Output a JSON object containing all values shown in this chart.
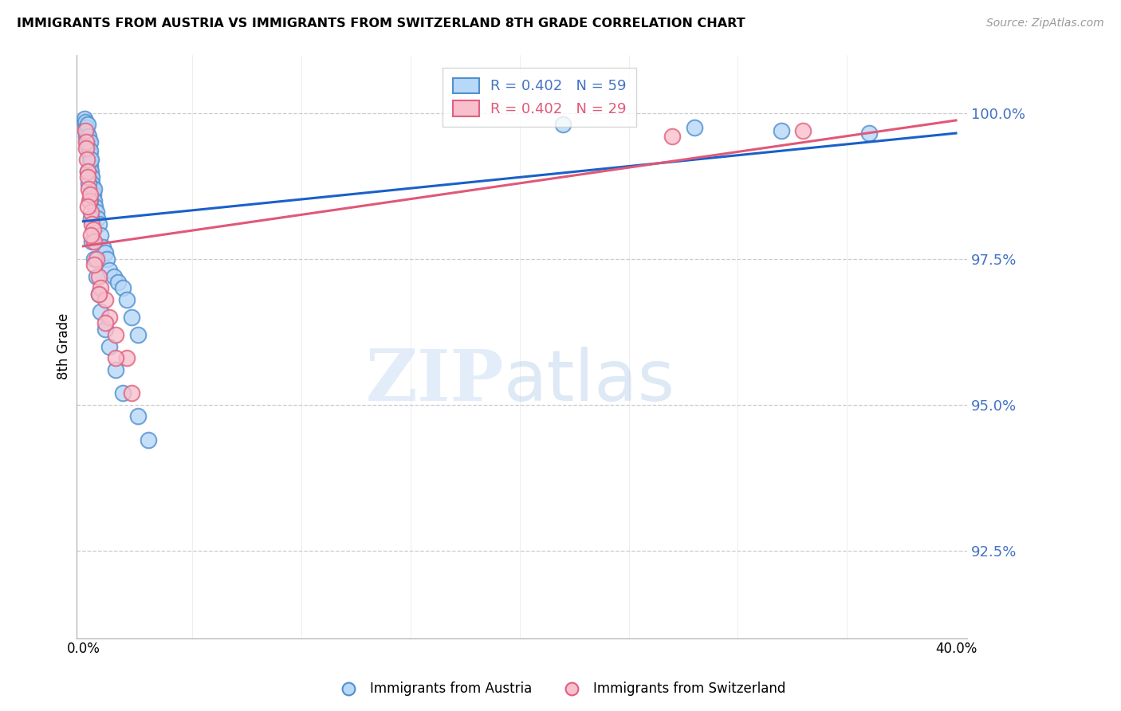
{
  "title": "IMMIGRANTS FROM AUSTRIA VS IMMIGRANTS FROM SWITZERLAND 8TH GRADE CORRELATION CHART",
  "source": "Source: ZipAtlas.com",
  "ylabel": "8th Grade",
  "y_ticks": [
    92.5,
    95.0,
    97.5,
    100.0
  ],
  "x_min": 0.0,
  "x_max": 40.0,
  "y_min": 91.0,
  "y_max": 101.0,
  "austria_color_face": "#b8d8f8",
  "austria_color_edge": "#5090d0",
  "switzerland_color_face": "#f8c0cc",
  "switzerland_color_edge": "#e06080",
  "trendline_austria_color": "#1a60c8",
  "trendline_switzerland_color": "#e05878",
  "legend_austria_label": "R = 0.402   N = 59",
  "legend_switzerland_label": "R = 0.402   N = 29",
  "bottom_austria_label": "Immigrants from Austria",
  "bottom_switzerland_label": "Immigrants from Switzerland",
  "austria_x": [
    0.05,
    0.08,
    0.1,
    0.12,
    0.15,
    0.15,
    0.18,
    0.2,
    0.2,
    0.22,
    0.25,
    0.25,
    0.28,
    0.3,
    0.3,
    0.3,
    0.32,
    0.35,
    0.35,
    0.38,
    0.4,
    0.42,
    0.45,
    0.5,
    0.5,
    0.55,
    0.6,
    0.65,
    0.7,
    0.8,
    0.9,
    1.0,
    1.1,
    1.2,
    1.4,
    1.6,
    1.8,
    2.0,
    2.2,
    2.5,
    0.2,
    0.25,
    0.3,
    0.35,
    0.4,
    0.5,
    0.6,
    0.7,
    0.8,
    1.0,
    1.2,
    1.5,
    1.8,
    2.5,
    3.0,
    22.0,
    28.0,
    32.0,
    36.0
  ],
  "austria_y": [
    99.9,
    99.8,
    99.85,
    99.7,
    99.75,
    99.6,
    99.65,
    99.8,
    99.55,
    99.5,
    99.4,
    99.6,
    99.3,
    99.5,
    99.2,
    99.35,
    99.1,
    99.0,
    99.2,
    98.9,
    98.8,
    98.7,
    98.6,
    98.7,
    98.5,
    98.4,
    98.3,
    98.2,
    98.1,
    97.9,
    97.7,
    97.6,
    97.5,
    97.3,
    97.2,
    97.1,
    97.0,
    96.8,
    96.5,
    96.2,
    99.0,
    98.8,
    98.5,
    98.2,
    97.8,
    97.5,
    97.2,
    96.9,
    96.6,
    96.3,
    96.0,
    95.6,
    95.2,
    94.8,
    94.4,
    99.8,
    99.75,
    99.7,
    99.65
  ],
  "switzerland_x": [
    0.08,
    0.12,
    0.15,
    0.18,
    0.2,
    0.22,
    0.25,
    0.28,
    0.3,
    0.35,
    0.4,
    0.45,
    0.5,
    0.6,
    0.7,
    0.8,
    1.0,
    1.2,
    1.5,
    2.0,
    0.2,
    0.35,
    0.5,
    0.7,
    1.0,
    1.5,
    2.2,
    27.0,
    33.0
  ],
  "switzerland_y": [
    99.7,
    99.5,
    99.4,
    99.2,
    99.0,
    98.9,
    98.7,
    98.5,
    98.6,
    98.3,
    98.1,
    98.0,
    97.8,
    97.5,
    97.2,
    97.0,
    96.8,
    96.5,
    96.2,
    95.8,
    98.4,
    97.9,
    97.4,
    96.9,
    96.4,
    95.8,
    95.2,
    99.6,
    99.7
  ]
}
